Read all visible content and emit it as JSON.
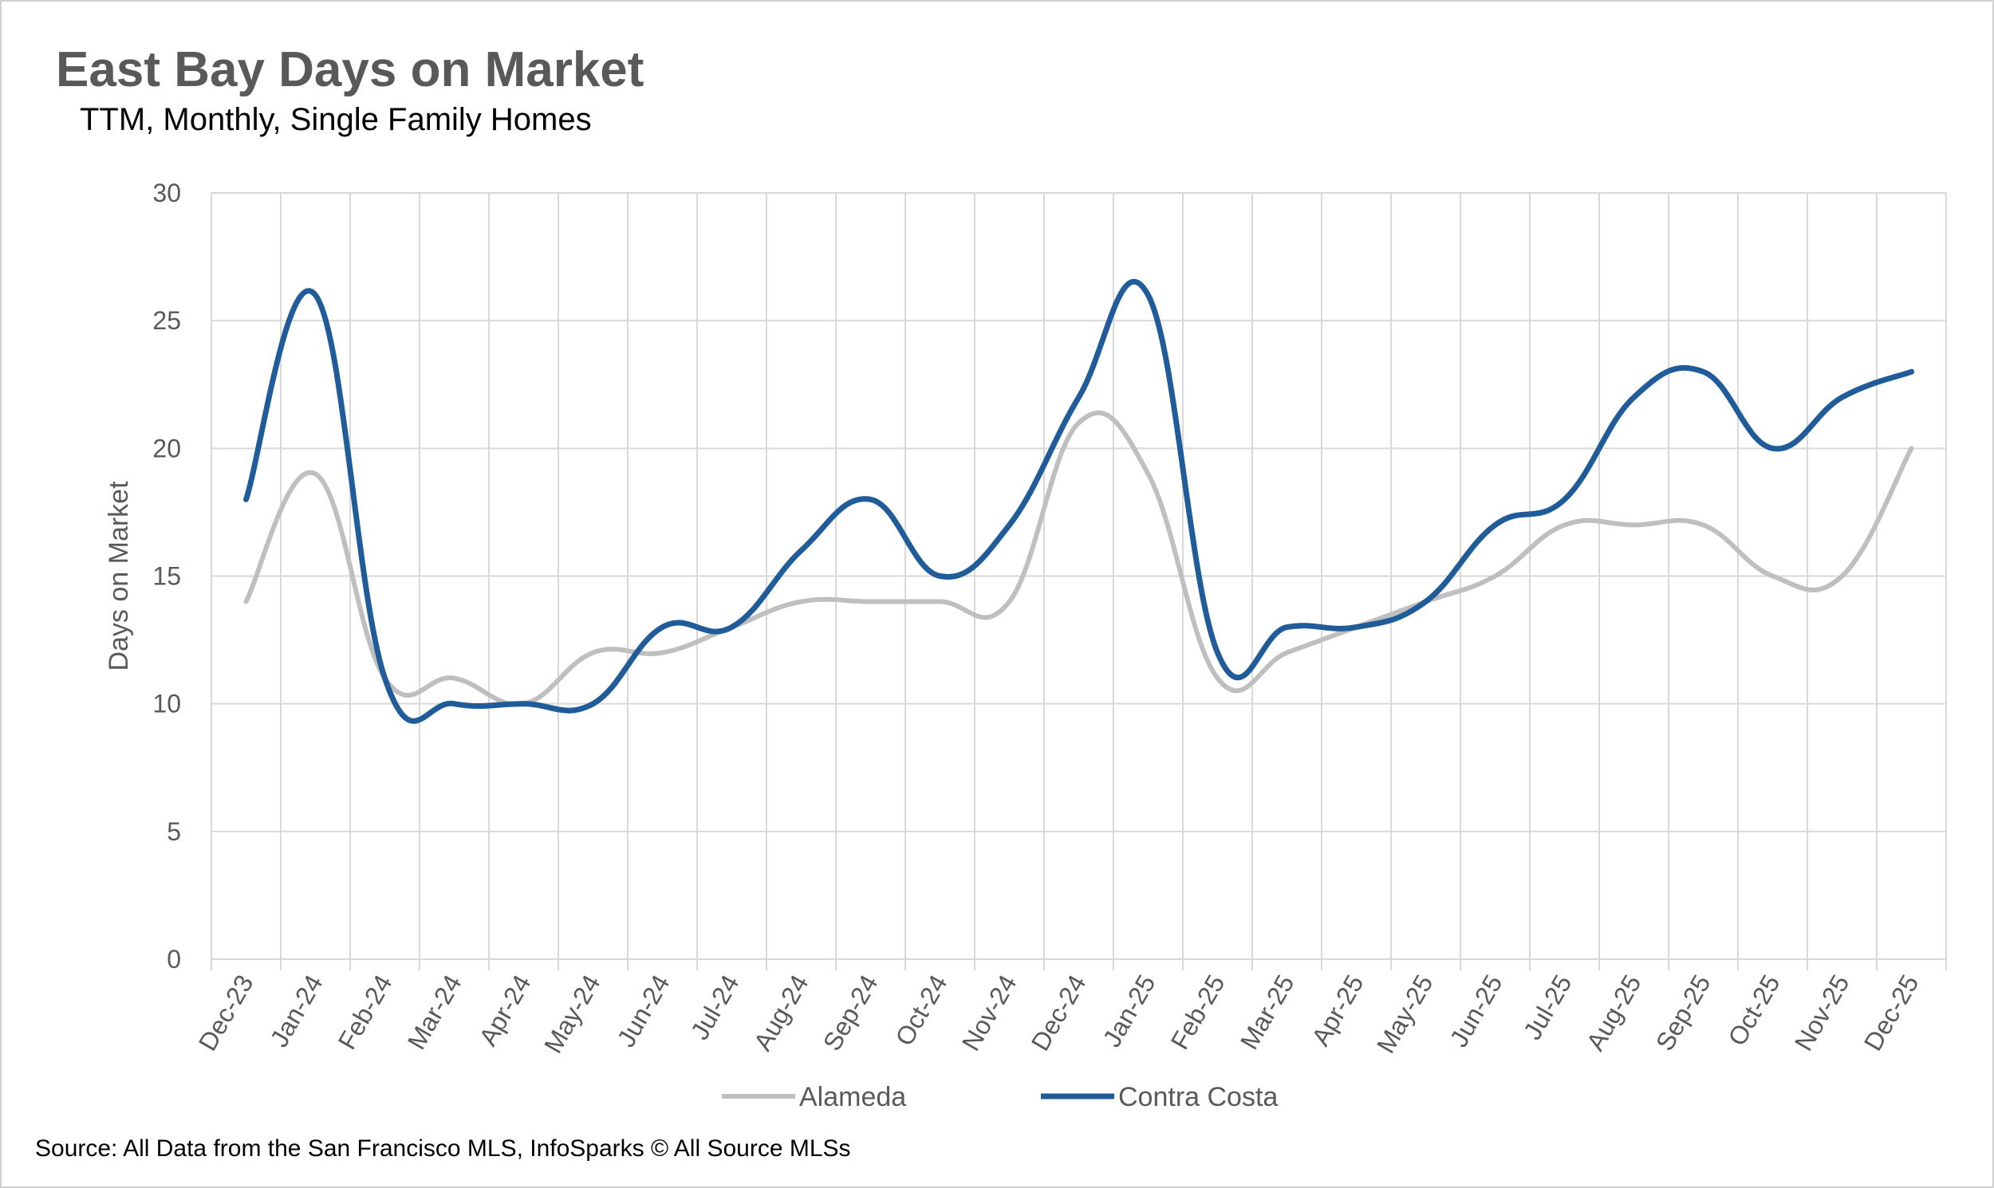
{
  "title": "East Bay Days on Market",
  "subtitle": "TTM, Monthly, Single Family Homes",
  "source": "Source: All Data from the San Francisco MLS, InfoSparks © All Source MLSs",
  "colors": {
    "alameda": "#BFBFBF",
    "contra_costa": "#1F5C99",
    "grid": "#D9D9D9",
    "text": "#595959"
  },
  "chart_data": {
    "type": "line",
    "title": "East Bay Days on Market",
    "subtitle": "TTM, Monthly, Single Family Homes",
    "xlabel": "",
    "ylabel": "Days on Market",
    "ylim": [
      0,
      30
    ],
    "yticks": [
      0,
      5,
      10,
      15,
      20,
      25,
      30
    ],
    "grid": true,
    "legend": "bottom",
    "categories": [
      "Dec-23",
      "Jan-24",
      "Feb-24",
      "Mar-24",
      "Apr-24",
      "May-24",
      "Jun-24",
      "Jul-24",
      "Aug-24",
      "Sep-24",
      "Oct-24",
      "Nov-24",
      "Dec-24",
      "Jan-25",
      "Feb-25",
      "Mar-25",
      "Apr-25",
      "May-25",
      "Jun-25",
      "Jul-25",
      "Aug-25",
      "Sep-25",
      "Oct-25",
      "Nov-25",
      "Dec-25"
    ],
    "series": [
      {
        "name": "Alameda",
        "color": "#BFBFBF",
        "values": [
          14,
          19,
          11,
          11,
          10,
          12,
          12,
          13,
          14,
          14,
          14,
          14,
          21,
          19,
          11,
          12,
          13,
          14,
          15,
          17,
          17,
          17,
          15,
          15,
          20
        ]
      },
      {
        "name": "Contra Costa",
        "color": "#1F5C99",
        "values": [
          18,
          26,
          11,
          10,
          10,
          10,
          13,
          13,
          16,
          18,
          15,
          17,
          22,
          26,
          12,
          13,
          13,
          14,
          17,
          18,
          22,
          23,
          20,
          22,
          23
        ]
      }
    ]
  }
}
